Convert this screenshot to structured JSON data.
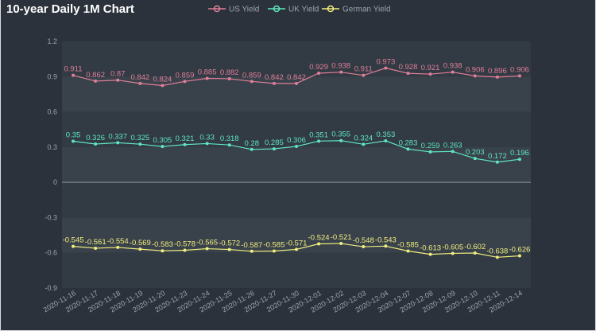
{
  "chart_data": {
    "type": "line",
    "title": "10-year Daily 1M Chart",
    "xlabel": "",
    "ylabel": "",
    "ylim": [
      -0.9,
      1.2
    ],
    "yticks": [
      "1.2",
      "0.9",
      "0.6",
      "0.3",
      "0",
      "-0.3",
      "-0.6",
      "-0.9"
    ],
    "ytick_values": [
      1.2,
      0.9,
      0.6,
      0.3,
      0,
      -0.3,
      -0.6,
      -0.9
    ],
    "legend_position": "top",
    "categories": [
      "2020-11-16",
      "2020-11-17",
      "2020-11-18",
      "2020-11-19",
      "2020-11-20",
      "2020-11-23",
      "2020-11-24",
      "2020-11-25",
      "2020-11-26",
      "2020-11-27",
      "2020-11-30",
      "2020-12-01",
      "2020-12-02",
      "2020-12-03",
      "2020-12-04",
      "2020-12-07",
      "2020-12-08",
      "2020-12-09",
      "2020-12-10",
      "2020-12-11",
      "2020-12-14"
    ],
    "series": [
      {
        "name": "US Yield",
        "color": "#e07f97",
        "values": [
          0.911,
          0.862,
          0.87,
          0.842,
          0.824,
          0.859,
          0.885,
          0.882,
          0.859,
          0.842,
          0.842,
          0.929,
          0.938,
          0.911,
          0.973,
          0.928,
          0.921,
          0.938,
          0.906,
          0.896,
          0.906
        ],
        "labels": [
          "0.911",
          "0.862",
          "0.87",
          "0.842",
          "0.824",
          "0.859",
          "0.885",
          "0.882",
          "0.859",
          "0.842",
          "0.842",
          "0.929",
          "0.938",
          "0.911",
          "0.973",
          "0.928",
          "0.921",
          "0.938",
          "0.906",
          "0.896",
          "0.906"
        ]
      },
      {
        "name": "UK Yield",
        "color": "#5fe6bf",
        "values": [
          0.35,
          0.326,
          0.337,
          0.325,
          0.305,
          0.321,
          0.33,
          0.318,
          0.28,
          0.285,
          0.306,
          0.351,
          0.355,
          0.324,
          0.353,
          0.283,
          0.259,
          0.263,
          0.203,
          0.172,
          0.196
        ],
        "labels": [
          "0.35",
          "0.326",
          "0.337",
          "0.325",
          "0.305",
          "0.321",
          "0.33",
          "0.318",
          "0.28",
          "0.285",
          "0.306",
          "0.351",
          "0.355",
          "0.324",
          "0.353",
          "0.283",
          "0.259",
          "0.263",
          "0.203",
          "0.172",
          "0.196"
        ]
      },
      {
        "name": "German Yield",
        "color": "#f0ee7e",
        "values": [
          -0.545,
          -0.561,
          -0.554,
          -0.569,
          -0.583,
          -0.578,
          -0.565,
          -0.572,
          -0.587,
          -0.585,
          -0.571,
          -0.524,
          -0.521,
          -0.548,
          -0.543,
          -0.585,
          -0.613,
          -0.605,
          -0.602,
          -0.638,
          -0.626
        ],
        "labels": [
          "-0.545",
          "-0.561",
          "-0.554",
          "-0.569",
          "-0.583",
          "-0.578",
          "-0.565",
          "-0.572",
          "-0.587",
          "-0.585",
          "-0.571",
          "-0.524",
          "-0.521",
          "-0.548",
          "-0.543",
          "-0.585",
          "-0.613",
          "-0.605",
          "-0.602",
          "-0.638",
          "-0.626"
        ]
      }
    ],
    "grid": true
  },
  "colors": {
    "background": "#2b323b",
    "plot_band_dark": "#323a44",
    "plot_band_light": "#39414b",
    "zero_line": "#8a929b"
  }
}
